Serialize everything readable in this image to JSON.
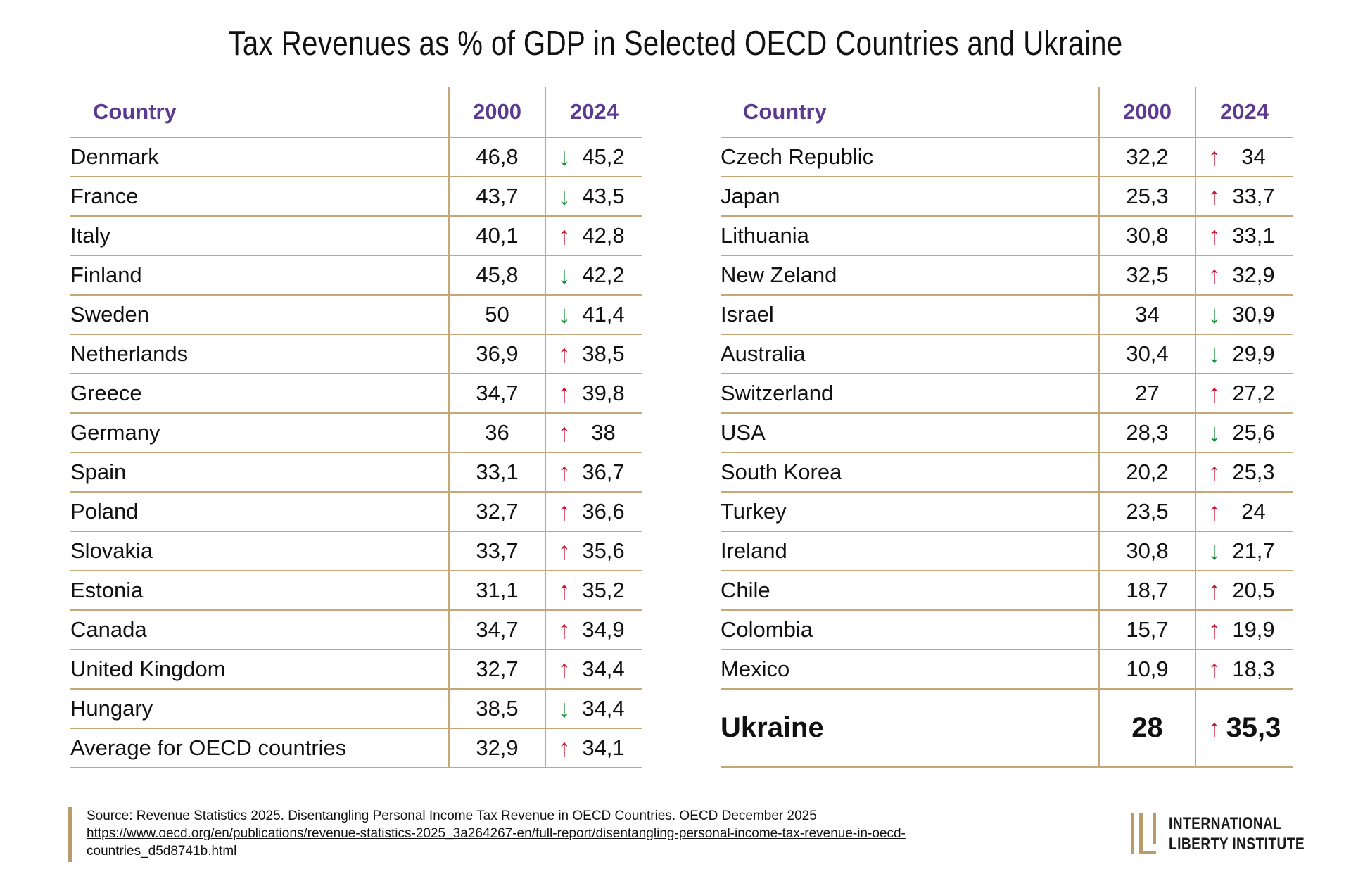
{
  "title": "Tax Revenues as % of GDP in Selected OECD Countries and Ukraine",
  "colors": {
    "header": "#5b3a8f",
    "rule": "#c4a879",
    "up": "#c8102e",
    "down": "#1a8f3c"
  },
  "chart_data": {
    "type": "table",
    "title": "Tax Revenues as % of GDP in Selected OECD Countries and Ukraine",
    "columns": [
      "Country",
      "2000",
      "2024"
    ],
    "left": [
      {
        "country": "Denmark",
        "y2000": "46,8",
        "y2024": "45,2",
        "trend": "down"
      },
      {
        "country": "France",
        "y2000": "43,7",
        "y2024": "43,5",
        "trend": "down"
      },
      {
        "country": "Italy",
        "y2000": "40,1",
        "y2024": "42,8",
        "trend": "up"
      },
      {
        "country": "Finland",
        "y2000": "45,8",
        "y2024": "42,2",
        "trend": "down"
      },
      {
        "country": "Sweden",
        "y2000": "50",
        "y2024": "41,4",
        "trend": "down"
      },
      {
        "country": "Netherlands",
        "y2000": "36,9",
        "y2024": "38,5",
        "trend": "up"
      },
      {
        "country": "Greece",
        "y2000": "34,7",
        "y2024": "39,8",
        "trend": "up"
      },
      {
        "country": "Germany",
        "y2000": "36",
        "y2024": "38",
        "trend": "up"
      },
      {
        "country": "Spain",
        "y2000": "33,1",
        "y2024": "36,7",
        "trend": "up"
      },
      {
        "country": "Poland",
        "y2000": "32,7",
        "y2024": "36,6",
        "trend": "up"
      },
      {
        "country": "Slovakia",
        "y2000": "33,7",
        "y2024": "35,6",
        "trend": "up"
      },
      {
        "country": "Estonia",
        "y2000": "31,1",
        "y2024": "35,2",
        "trend": "up"
      },
      {
        "country": "Canada",
        "y2000": "34,7",
        "y2024": "34,9",
        "trend": "up"
      },
      {
        "country": "United Kingdom",
        "y2000": "32,7",
        "y2024": "34,4",
        "trend": "up"
      },
      {
        "country": "Hungary",
        "y2000": "38,5",
        "y2024": "34,4",
        "trend": "down"
      },
      {
        "country": "Average for OECD countries",
        "y2000": "32,9",
        "y2024": "34,1",
        "trend": "up"
      }
    ],
    "right": [
      {
        "country": "Czech Republic",
        "y2000": "32,2",
        "y2024": "34",
        "trend": "up"
      },
      {
        "country": "Japan",
        "y2000": "25,3",
        "y2024": "33,7",
        "trend": "up"
      },
      {
        "country": "Lithuania",
        "y2000": "30,8",
        "y2024": "33,1",
        "trend": "up"
      },
      {
        "country": "New Zeland",
        "y2000": "32,5",
        "y2024": "32,9",
        "trend": "up"
      },
      {
        "country": "Israel",
        "y2000": "34",
        "y2024": "30,9",
        "trend": "down"
      },
      {
        "country": "Australia",
        "y2000": "30,4",
        "y2024": "29,9",
        "trend": "down"
      },
      {
        "country": "Switzerland",
        "y2000": "27",
        "y2024": "27,2",
        "trend": "up"
      },
      {
        "country": "USA",
        "y2000": "28,3",
        "y2024": "25,6",
        "trend": "down"
      },
      {
        "country": "South Korea",
        "y2000": "20,2",
        "y2024": "25,3",
        "trend": "up"
      },
      {
        "country": "Turkey",
        "y2000": "23,5",
        "y2024": "24",
        "trend": "up"
      },
      {
        "country": "Ireland",
        "y2000": "30,8",
        "y2024": "21,7",
        "trend": "down"
      },
      {
        "country": "Chile",
        "y2000": "18,7",
        "y2024": "20,5",
        "trend": "up"
      },
      {
        "country": "Colombia",
        "y2000": "15,7",
        "y2024": "19,9",
        "trend": "up"
      },
      {
        "country": "Mexico",
        "y2000": "10,9",
        "y2024": "18,3",
        "trend": "up"
      },
      {
        "country": "Ukraine",
        "y2000": "28",
        "y2024": "35,3",
        "trend": "up",
        "highlight": true
      }
    ]
  },
  "source": {
    "text": "Source: Revenue Statistics 2025. Disentangling Personal Income Tax Revenue in OECD Countries. OECD December 2025",
    "url": "https://www.oecd.org/en/publications/revenue-statistics-2025_3a264267-en/full-report/disentangling-personal-income-tax-revenue-in-oecd-countries_d5d8741b.html"
  },
  "logo": {
    "line1": "INTERNATIONAL",
    "line2": "LIBERTY INSTITUTE",
    "color": "#b99b6b"
  }
}
